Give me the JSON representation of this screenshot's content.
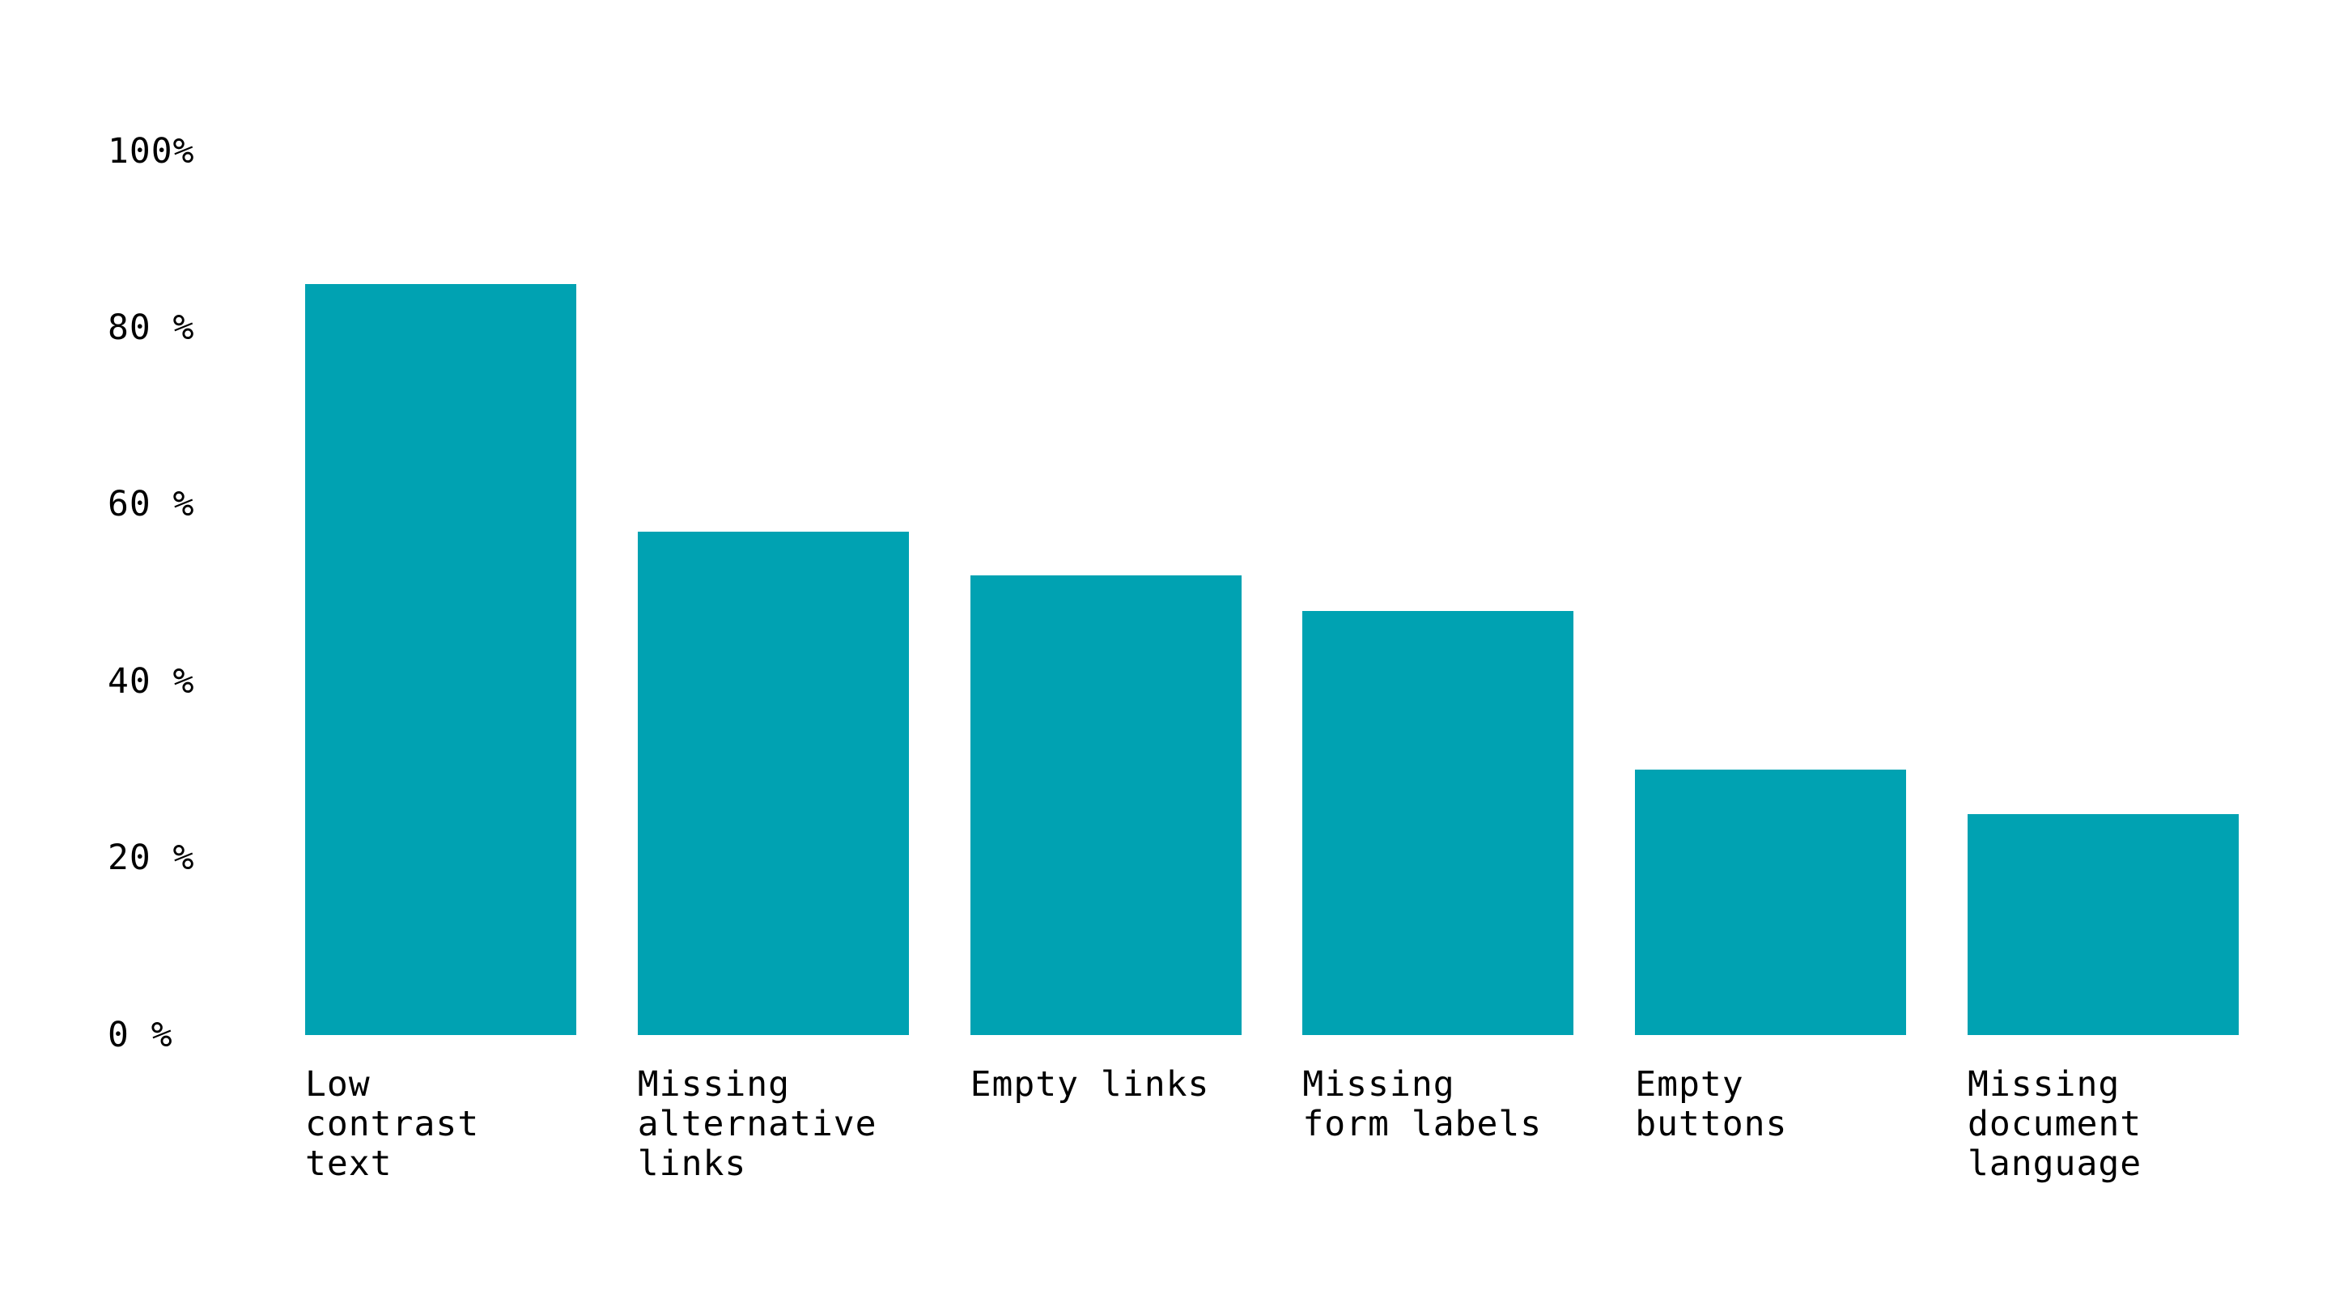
{
  "chart_data": {
    "type": "bar",
    "title": "",
    "xlabel": "",
    "ylabel": "",
    "unit": "%",
    "ylim": [
      0,
      100
    ],
    "grid": false,
    "legend": null,
    "background_color": "#ffffff",
    "bar_color": "#00a2b2",
    "text_color": "#000000",
    "categories": [
      "Low contrast text",
      "Missing alternative links",
      "Empty links",
      "Missing form labels",
      "Empty buttons",
      "Missing document language"
    ],
    "category_lines": [
      [
        "Low",
        "contrast",
        "text"
      ],
      [
        "Missing",
        "alternative",
        "links"
      ],
      [
        "Empty links"
      ],
      [
        "Missing",
        "form labels"
      ],
      [
        "Empty",
        "buttons"
      ],
      [
        "Missing",
        "document",
        "language"
      ]
    ],
    "values": [
      85,
      57,
      52,
      48,
      30,
      25
    ],
    "yticks": [
      {
        "label": "0 %",
        "value": 0
      },
      {
        "label": "20 %",
        "value": 20
      },
      {
        "label": "40 %",
        "value": 40
      },
      {
        "label": "60 %",
        "value": 60
      },
      {
        "label": "80 %",
        "value": 80
      },
      {
        "label": "100%",
        "value": 100
      }
    ]
  }
}
